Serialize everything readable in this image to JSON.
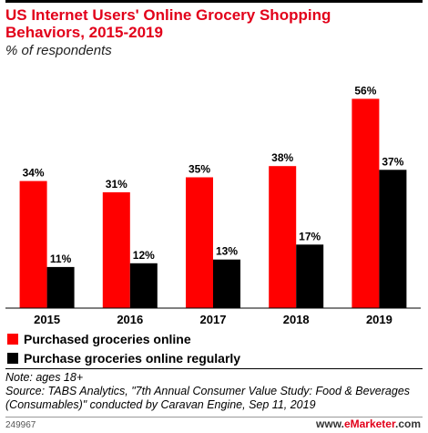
{
  "header": {
    "title": "US Internet Users' Online Grocery Shopping Behaviors, 2015-2019",
    "subtitle": "% of respondents"
  },
  "chart_data": {
    "type": "bar",
    "title": "US Internet Users' Online Grocery Shopping Behaviors, 2015-2019",
    "subtitle": "% of respondents",
    "categories": [
      "2015",
      "2016",
      "2017",
      "2018",
      "2019"
    ],
    "series": [
      {
        "name": "Purchased groceries online",
        "values": [
          34,
          31,
          35,
          38,
          56
        ],
        "color": "#ff0000"
      },
      {
        "name": "Purchase groceries online regularly",
        "values": [
          11,
          12,
          13,
          17,
          37
        ],
        "color": "#000000"
      }
    ],
    "value_suffix": "%",
    "ylim": [
      0,
      60
    ],
    "grid": false,
    "legend_position": "bottom-left"
  },
  "notes": {
    "note": "Note: ages 18+",
    "source": "Source: TABS Analytics, \"7th Annual Consumer Value Study: Food & Beverages (Consumables)\" conducted by Caravan Engine, Sep 11, 2019"
  },
  "footer": {
    "chart_id": "249967",
    "brand_prefix": "www.",
    "brand_main": "eMarketer",
    "brand_suffix": ".com",
    "brand_color": "#e2001a"
  }
}
